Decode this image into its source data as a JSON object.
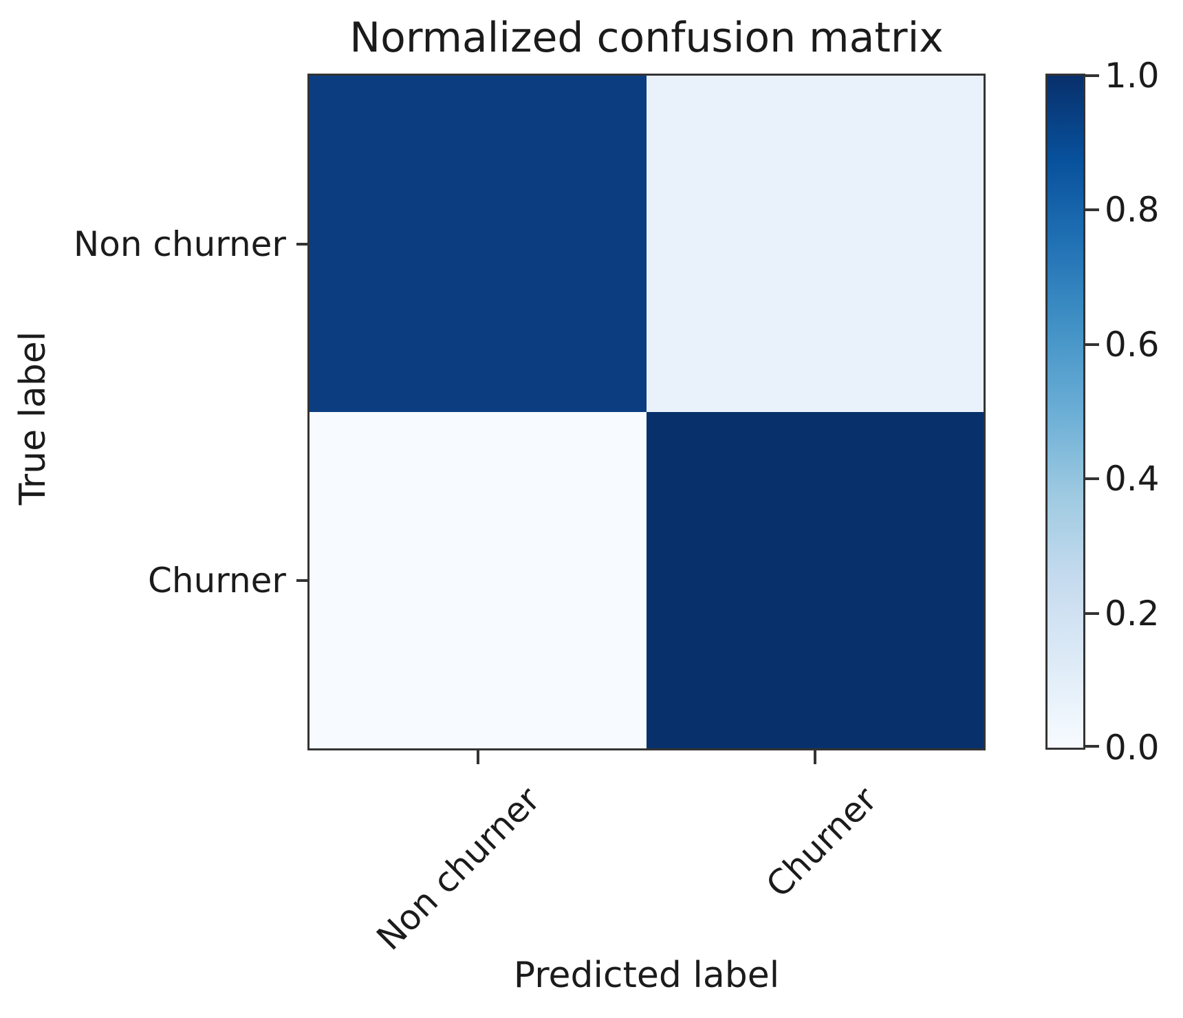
{
  "chart_data": {
    "type": "heatmap",
    "title": "Normalized confusion matrix",
    "xlabel": "Predicted label",
    "ylabel": "True label",
    "x_categories": [
      "Non churner",
      "Churner"
    ],
    "y_categories": [
      "Non churner",
      "Churner"
    ],
    "values": [
      [
        0.91,
        0.09
      ],
      [
        0.02,
        0.98
      ]
    ],
    "cell_colors": [
      [
        "#0b3d80",
        "#e9f1fa"
      ],
      [
        "#f7fafe",
        "#08306b"
      ]
    ],
    "colormap": "Blues",
    "grid": false,
    "legend": "none",
    "colorbar": {
      "position": "right",
      "range": [
        0.0,
        1.0
      ],
      "tick_labels": [
        "1.0",
        "0.8",
        "0.6",
        "0.4",
        "0.2",
        "0.0"
      ],
      "gradient_stops_top_to_bottom": [
        "#08306b",
        "#08519c",
        "#2171b5",
        "#4292c6",
        "#6baed6",
        "#9ecae1",
        "#c6dbef",
        "#deebf7",
        "#f7fbff"
      ]
    }
  },
  "colors": {
    "background": "#ffffff",
    "text": "#1b1b1b",
    "spine": "#333333"
  }
}
